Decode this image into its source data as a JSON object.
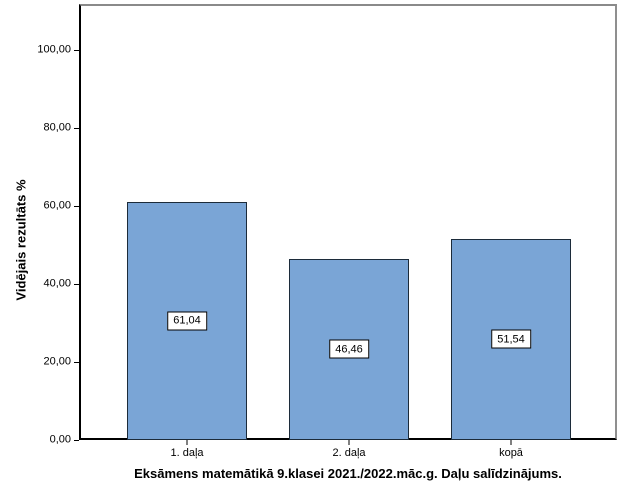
{
  "chart_data": {
    "type": "bar",
    "title": "Eksāmens matemātikā 9.klasei 2021./2022.māc.g. Daļu salīdzinājums.",
    "xlabel": "",
    "ylabel": "Vidējais rezultāts %",
    "categories": [
      "1. daļa",
      "2. daļa",
      "kopā"
    ],
    "values": [
      61.04,
      46.46,
      51.54
    ],
    "value_labels": [
      "61,04",
      "46,46",
      "51,54"
    ],
    "ylim": [
      0,
      100
    ],
    "yticks": [
      0,
      20,
      40,
      60,
      80,
      100
    ],
    "ytick_labels": [
      "0,00",
      "20,00",
      "40,00",
      "60,00",
      "80,00",
      "100,00"
    ],
    "grid": false,
    "legend_visible": false,
    "bar_fill_color": "#7AA5D6",
    "bar_border_color": "#1C2B3A",
    "frame_color": "#8A8A8A",
    "axis_color": "#000000"
  }
}
